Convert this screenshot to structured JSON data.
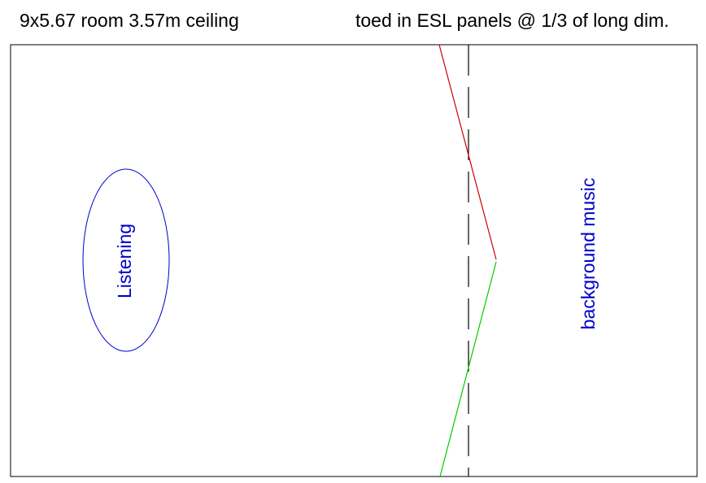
{
  "title_left": "9x5.67 room 3.57m ceiling",
  "title_right": "toed in ESL panels @ 1/3 of long dim.",
  "zones": {
    "listening_label": "Listening",
    "background_label": "background music"
  },
  "colors": {
    "room_outline": "#000000",
    "listening_zone": "#0000cc",
    "background_label": "#0000cc",
    "panel_upper": "#cc0000",
    "panel_lower": "#00cc00",
    "divider_line": "#000000"
  }
}
